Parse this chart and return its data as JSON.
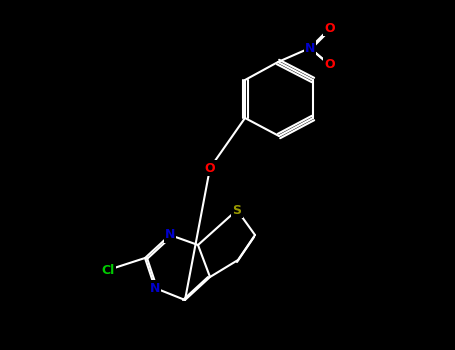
{
  "background_color": "#000000",
  "fig_width": 4.55,
  "fig_height": 3.5,
  "dpi": 100,
  "bond_color": "#ffffff",
  "bond_width": 1.5,
  "atom_colors": {
    "C": "#ffffff",
    "N": "#0000cc",
    "O": "#ff0000",
    "S": "#999900",
    "Cl": "#00cc00",
    "NO2_N": "#0000cc",
    "NO2_O": "#ff0000"
  },
  "font_size": 9
}
